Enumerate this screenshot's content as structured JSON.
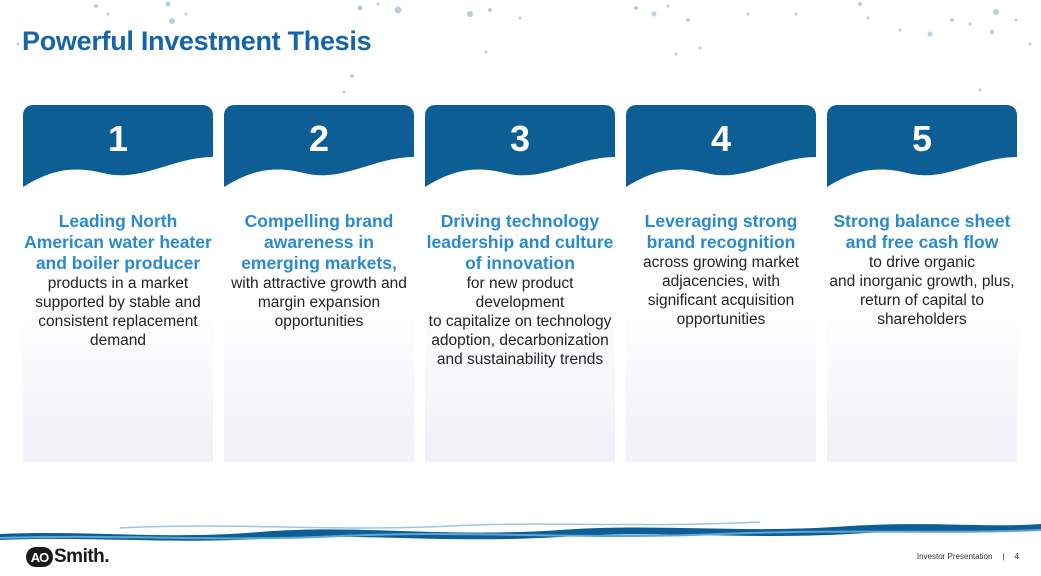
{
  "title": "Powerful Investment Thesis",
  "cards": [
    {
      "number": "1",
      "highlight": "Leading North American water heater and boiler producer",
      "text": "products in a market supported by stable and consistent replacement demand"
    },
    {
      "number": "2",
      "highlight": "Compelling brand awareness in emerging markets,",
      "text": "with attractive growth and margin expansion opportunities"
    },
    {
      "number": "3",
      "highlight": "Driving technology leadership and culture of innovation",
      "text": "for new product development\nto capitalize on technology adoption, decarbonization and sustainability trends"
    },
    {
      "number": "4",
      "highlight": "Leveraging strong brand recognition",
      "text": "across growing market adjacencies, with significant acquisition opportunities"
    },
    {
      "number": "5",
      "highlight": "Strong balance sheet and free cash flow",
      "text": "to drive organic\nand inorganic growth, plus, return of capital to shareholders"
    }
  ],
  "footer": {
    "logo_mark": "AO",
    "logo_word": "Smith.",
    "label": "Investor Presentation",
    "separator": "|",
    "page": "4"
  },
  "colors": {
    "header_blue": "#0e5e96",
    "highlight_blue": "#2a8ad0",
    "title_blue": "#1565a8"
  }
}
